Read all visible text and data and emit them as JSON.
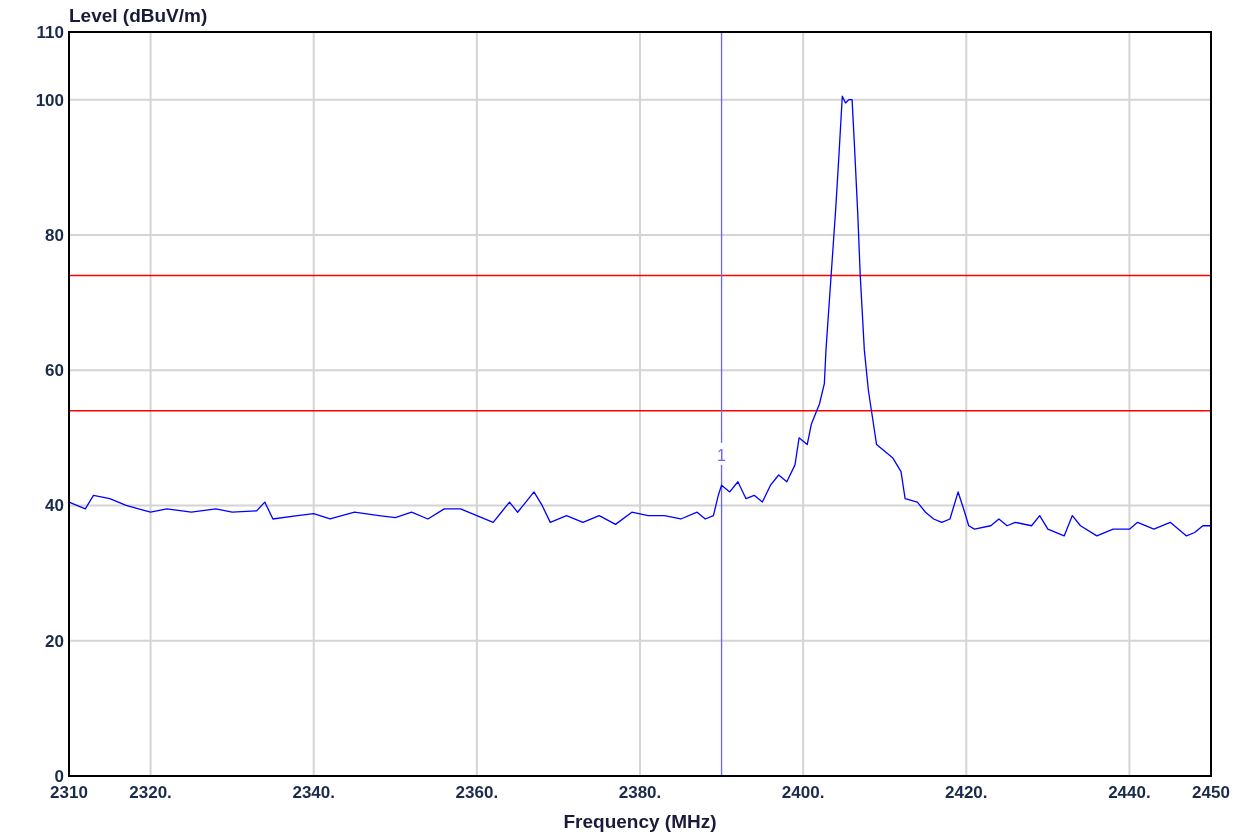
{
  "chart_data": {
    "type": "line",
    "xlabel": "Frequency (MHz)",
    "ylabel": "Level (dBuV/m)",
    "xlim": [
      2310,
      2450
    ],
    "ylim": [
      0,
      110
    ],
    "xticks": [
      2310,
      {
        "value": 2320,
        "label": "2320."
      },
      {
        "value": 2340,
        "label": "2340."
      },
      {
        "value": 2360,
        "label": "2360."
      },
      {
        "value": 2380,
        "label": "2380."
      },
      {
        "value": 2400,
        "label": "2400."
      },
      {
        "value": 2420,
        "label": "2420."
      },
      {
        "value": 2440,
        "label": "2440."
      },
      2450
    ],
    "yticks": [
      0,
      20,
      40,
      60,
      80,
      100,
      110
    ],
    "grid": true,
    "annotations": [
      {
        "text": "1",
        "x": 2390,
        "y": 46
      }
    ],
    "x": [
      2310,
      2312,
      2313,
      2315,
      2317,
      2320,
      2322,
      2325,
      2328,
      2330,
      2333,
      2334,
      2335,
      2338,
      2340,
      2342,
      2345,
      2348,
      2350,
      2352,
      2354,
      2356,
      2358,
      2360,
      2362,
      2363,
      2364,
      2365,
      2366,
      2367,
      2368,
      2369,
      2371,
      2373,
      2375,
      2377,
      2379,
      2381,
      2383,
      2385,
      2387,
      2388,
      2389,
      2389.6,
      2390,
      2391,
      2392,
      2393,
      2394,
      2395,
      2396,
      2397,
      2398,
      2399,
      2399.5,
      2400.5,
      2401,
      2402,
      2402.6,
      2402.8,
      2403.2,
      2403.6,
      2404,
      2404.4,
      2404.8,
      2405.2,
      2405.6,
      2406,
      2406.3,
      2406.7,
      2407,
      2407.5,
      2408,
      2408.5,
      2409,
      2410,
      2411,
      2412,
      2412.5,
      2414,
      2415,
      2416,
      2417,
      2418,
      2419,
      2419.8,
      2420.3,
      2421,
      2423,
      2424,
      2425,
      2426,
      2428,
      2429,
      2430,
      2432,
      2433,
      2434,
      2436,
      2438,
      2440,
      2441,
      2443,
      2445,
      2447,
      2448,
      2449,
      2450
    ],
    "series": [
      {
        "color": "#0000ff",
        "values": [
          40.5,
          39.5,
          41.5,
          41,
          40,
          39,
          39.5,
          39,
          39.5,
          39,
          39.2,
          40.5,
          38,
          38.5,
          38.8,
          38,
          39,
          38.5,
          38.2,
          39,
          38,
          39.5,
          39.5,
          38.5,
          37.5,
          39,
          40.5,
          39,
          40.5,
          42,
          40,
          37.5,
          38.5,
          37.5,
          38.5,
          37.2,
          39,
          38.5,
          38.5,
          38,
          39,
          38,
          38.5,
          41.5,
          43,
          42,
          43.5,
          41,
          41.5,
          40.5,
          43,
          44.5,
          43.5,
          46,
          50,
          49,
          52,
          55,
          58,
          63,
          70,
          77,
          84,
          92,
          100.5,
          99.5,
          100,
          100,
          93,
          83,
          74,
          63,
          57,
          53,
          49,
          48,
          47,
          45,
          41,
          40.5,
          39,
          38,
          37.5,
          38,
          42,
          39,
          37,
          36.5,
          37,
          38,
          37,
          37.5,
          37,
          38.5,
          36.5,
          35.5,
          38.5,
          37,
          35.5,
          36.5,
          36.5,
          37.5,
          36.5,
          37.5,
          35.5,
          36,
          37,
          37
        ]
      }
    ],
    "ref_lines": [
      {
        "axis": "y",
        "value": 74,
        "color": "#ff0000"
      },
      {
        "axis": "y",
        "value": 54,
        "color": "#ff0000"
      },
      {
        "axis": "x",
        "value": 2390,
        "color": "#6666ff"
      }
    ]
  }
}
